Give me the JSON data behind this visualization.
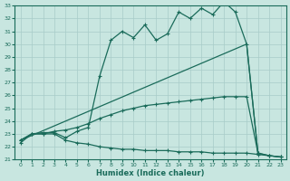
{
  "bg_color": "#c8e6e0",
  "line_color": "#1a6b5a",
  "grid_color": "#a8ccc8",
  "xlabel": "Humidex (Indice chaleur)",
  "xlim": [
    -0.5,
    23.5
  ],
  "ylim": [
    21,
    33
  ],
  "xticks": [
    0,
    1,
    2,
    3,
    4,
    5,
    6,
    7,
    8,
    9,
    10,
    11,
    12,
    13,
    14,
    15,
    16,
    17,
    18,
    19,
    20,
    21,
    22,
    23
  ],
  "yticks": [
    21,
    22,
    23,
    24,
    25,
    26,
    27,
    28,
    29,
    30,
    31,
    32,
    33
  ],
  "line1_x": [
    0,
    20,
    21
  ],
  "line1_y": [
    22.5,
    30.0,
    21.5
  ],
  "line2_x": [
    0,
    1,
    2,
    3,
    4,
    5,
    6,
    7,
    8,
    9,
    10,
    11,
    12,
    13,
    14,
    15,
    16,
    17,
    18,
    19,
    20,
    21,
    22,
    23
  ],
  "line2_y": [
    22.5,
    23.0,
    23.0,
    23.2,
    23.3,
    23.5,
    23.8,
    24.2,
    24.5,
    24.8,
    25.0,
    25.2,
    25.3,
    25.4,
    25.5,
    25.6,
    25.7,
    25.8,
    25.9,
    25.9,
    25.9,
    21.5,
    21.3,
    21.2
  ],
  "line3_x": [
    0,
    1,
    2,
    3,
    4,
    5,
    6,
    7,
    8,
    9,
    10,
    11,
    12,
    13,
    14,
    15,
    16,
    17,
    18,
    19,
    20,
    21,
    22,
    23
  ],
  "line3_y": [
    22.5,
    23.0,
    23.1,
    23.1,
    22.7,
    23.2,
    23.5,
    27.5,
    30.3,
    31.0,
    30.5,
    31.5,
    30.3,
    30.8,
    32.5,
    32.0,
    32.8,
    32.3,
    33.3,
    32.5,
    30.0,
    21.5,
    21.3,
    21.2
  ],
  "line4_x": [
    0,
    1,
    2,
    3,
    4,
    5,
    6,
    7,
    8,
    9,
    10,
    11,
    12,
    13,
    14,
    15,
    16,
    17,
    18,
    19,
    20,
    21,
    22,
    23
  ],
  "line4_y": [
    22.3,
    23.0,
    23.0,
    23.0,
    22.5,
    22.3,
    22.2,
    22.0,
    21.9,
    21.8,
    21.8,
    21.7,
    21.7,
    21.7,
    21.6,
    21.6,
    21.6,
    21.5,
    21.5,
    21.5,
    21.5,
    21.4,
    21.3,
    21.2
  ]
}
